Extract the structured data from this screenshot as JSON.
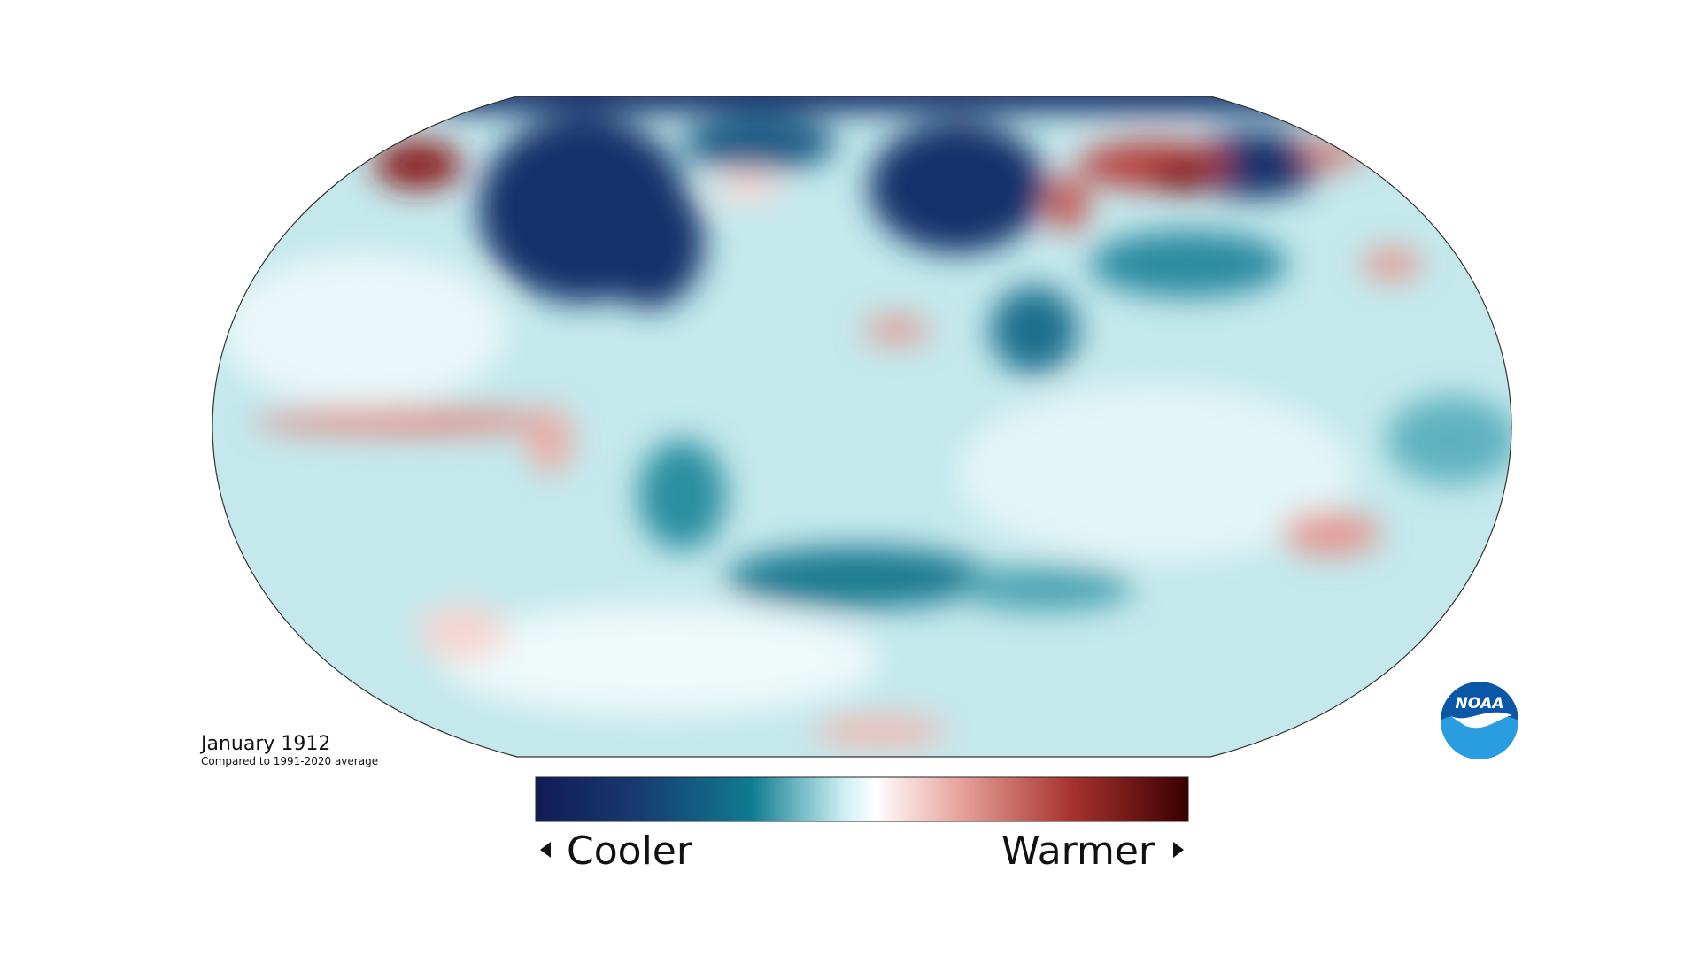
{
  "map": {
    "title": "January 1912",
    "subtitle": "Compared to 1991-2020 average"
  },
  "legend": {
    "low_label": "Cooler",
    "high_label": "Warmer"
  },
  "logo": {
    "text": "NOAA"
  }
}
